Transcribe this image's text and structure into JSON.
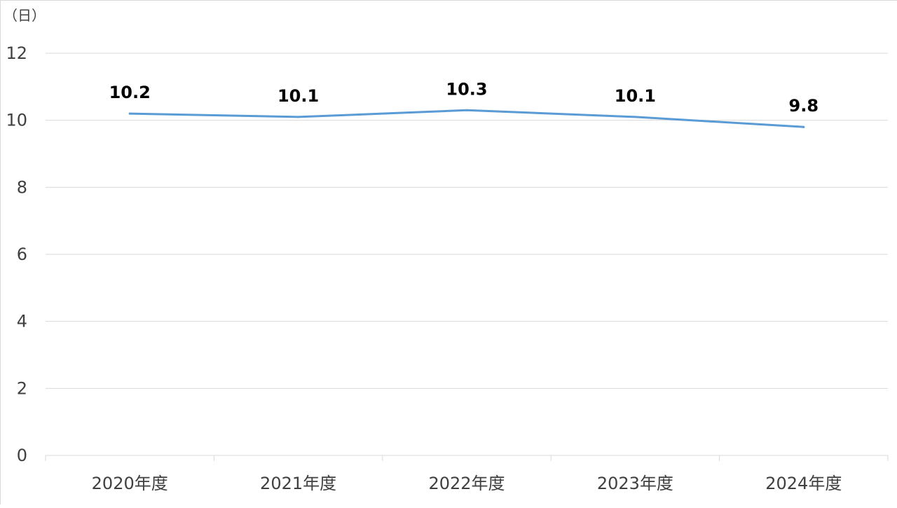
{
  "chart_data": {
    "type": "line",
    "title": "",
    "xlabel": "",
    "ylabel": "",
    "unit_label": "（日）",
    "categories": [
      "2020年度",
      "2021年度",
      "2022年度",
      "2023年度",
      "2024年度"
    ],
    "series": [
      {
        "values": [
          10.2,
          10.1,
          10.3,
          10.1,
          9.8
        ],
        "color": "#5b9bd5"
      }
    ],
    "data_labels": [
      "10.2",
      "10.1",
      "10.3",
      "10.1",
      "9.8"
    ],
    "ylim": [
      0,
      12
    ],
    "yticks": [
      0,
      2,
      4,
      6,
      8,
      10,
      12
    ],
    "ytick_labels": [
      "0",
      "2",
      "4",
      "6",
      "8",
      "10",
      "12"
    ],
    "grid": true,
    "legend": "none",
    "colors": {
      "grid": "#d9d9d9",
      "axis": "#d9d9d9",
      "text": "#404040",
      "label": "#000000"
    }
  }
}
